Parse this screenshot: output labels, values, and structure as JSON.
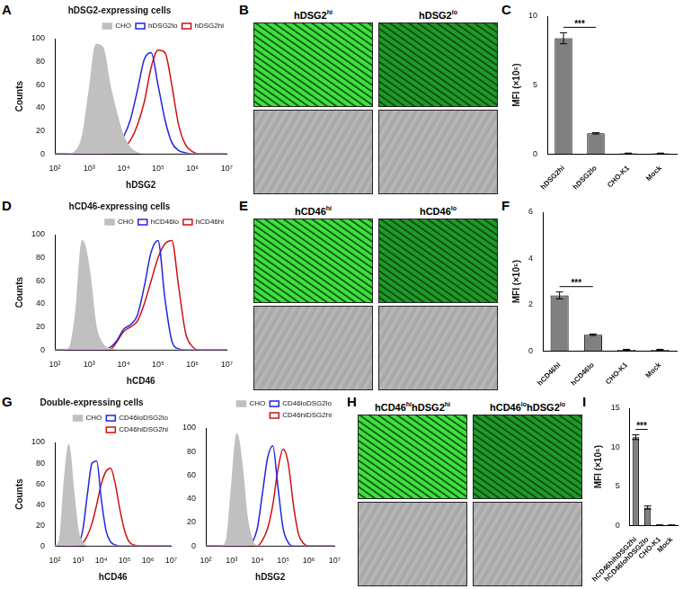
{
  "chart_data": [
    {
      "type": "line",
      "title": "hDSG2-expressing cells",
      "xlabel": "hDSG2",
      "ylabel": "Counts",
      "log": "x",
      "grid": false,
      "legend": "top-right",
      "x": [
        100,
        158,
        251,
        398,
        631,
        1000,
        1585,
        2512,
        3981,
        6310,
        10000,
        15849,
        25119,
        39811,
        63096,
        100000,
        158489,
        251189,
        398107,
        630957,
        1000000,
        1584893,
        2511886,
        3981072,
        6309573,
        10000000
      ],
      "series": [
        {
          "name": "CHO",
          "color": "#c0c0c0",
          "values": [
            0,
            0,
            0,
            2,
            15,
            55,
            95,
            92,
            60,
            35,
            15,
            5,
            1,
            0,
            0,
            0,
            0,
            0,
            0,
            0,
            0,
            0,
            0,
            0,
            0,
            0
          ]
        },
        {
          "name": "hDSG2lo",
          "color": "#2323e0",
          "values": [
            0,
            0,
            0,
            0,
            0,
            0,
            0,
            0,
            2,
            6,
            15,
            30,
            55,
            82,
            88,
            60,
            30,
            10,
            3,
            1,
            0,
            0,
            0,
            0,
            0,
            0
          ]
        },
        {
          "name": "hDSG2hi",
          "color": "#d01010",
          "values": [
            0,
            0,
            0,
            0,
            0,
            0,
            0,
            0,
            0,
            2,
            5,
            12,
            25,
            45,
            75,
            90,
            88,
            60,
            25,
            8,
            2,
            0,
            0,
            0,
            0,
            0
          ]
        }
      ],
      "xlim": [
        100,
        10000000
      ],
      "xticks": [
        {
          "value": 100,
          "label": "10²"
        },
        {
          "value": 1000,
          "label": "10³"
        },
        {
          "value": 10000,
          "label": "10⁴"
        },
        {
          "value": 100000,
          "label": "10⁵"
        },
        {
          "value": 1000000,
          "label": "10⁶"
        },
        {
          "value": 10000000,
          "label": "10⁷"
        }
      ],
      "ylim": [
        0,
        100
      ],
      "yticks": [
        0,
        20,
        40,
        60,
        80,
        100
      ]
    },
    {
      "type": "bar",
      "ylabel": "MFI (×10⁵)",
      "grid": false,
      "categories": [
        "hDSG2hi",
        "hDSG2lo",
        "CHO-K1",
        "Mock"
      ],
      "values": [
        8.4,
        1.5,
        0.05,
        0.05
      ],
      "errors": [
        0.4,
        0.05,
        0.02,
        0.02
      ],
      "color": "#808080",
      "ylim": [
        0,
        10
      ],
      "yticks": [
        0,
        5,
        10
      ],
      "annotations": [
        {
          "text": "***",
          "between": [
            "hDSG2hi",
            "hDSG2lo"
          ]
        }
      ]
    },
    {
      "type": "line",
      "title": "hCD46-expressing cells",
      "xlabel": "hCD46",
      "ylabel": "Counts",
      "log": "x",
      "grid": false,
      "legend": "top-right",
      "x": [
        100,
        158,
        251,
        398,
        631,
        1000,
        1585,
        2512,
        3981,
        6310,
        10000,
        15849,
        25119,
        39811,
        63096,
        100000,
        158489,
        251189,
        398107,
        630957,
        1000000,
        1584893,
        2511886,
        3981072,
        6309573,
        10000000
      ],
      "series": [
        {
          "name": "CHO",
          "color": "#c0c0c0",
          "values": [
            0,
            0,
            1,
            30,
            95,
            70,
            20,
            5,
            1,
            0,
            0,
            0,
            0,
            0,
            0,
            0,
            0,
            0,
            0,
            0,
            0,
            0,
            0,
            0,
            0,
            0
          ]
        },
        {
          "name": "hCD46lo",
          "color": "#2323e0",
          "values": [
            0,
            0,
            0,
            0,
            0,
            0,
            0,
            0,
            2,
            8,
            18,
            22,
            30,
            55,
            85,
            95,
            45,
            8,
            1,
            0,
            0,
            0,
            0,
            0,
            0,
            0
          ]
        },
        {
          "name": "hCD46hi",
          "color": "#d01010",
          "values": [
            0,
            0,
            0,
            0,
            0,
            0,
            0,
            0,
            0,
            7,
            16,
            20,
            25,
            40,
            60,
            80,
            92,
            95,
            55,
            15,
            3,
            0,
            0,
            0,
            0,
            0
          ]
        }
      ],
      "xlim": [
        100,
        10000000
      ],
      "xticks": [
        {
          "value": 100,
          "label": "10²"
        },
        {
          "value": 1000,
          "label": "10³"
        },
        {
          "value": 10000,
          "label": "10⁴"
        },
        {
          "value": 100000,
          "label": "10⁵"
        },
        {
          "value": 1000000,
          "label": "10⁶"
        },
        {
          "value": 10000000,
          "label": "10⁷"
        }
      ],
      "ylim": [
        0,
        100
      ],
      "yticks": [
        0,
        20,
        40,
        60,
        80,
        100
      ]
    },
    {
      "type": "bar",
      "ylabel": "MFI (×10⁵)",
      "grid": false,
      "categories": [
        "hCD46hi",
        "hCD46lo",
        "CHO-K1",
        "Mock"
      ],
      "values": [
        2.4,
        0.7,
        0.05,
        0.05
      ],
      "errors": [
        0.15,
        0.03,
        0.02,
        0.02
      ],
      "color": "#808080",
      "ylim": [
        0,
        6
      ],
      "yticks": [
        0,
        2,
        4,
        6
      ],
      "annotations": [
        {
          "text": "***",
          "between": [
            "hCD46hi",
            "hCD46lo"
          ]
        }
      ]
    },
    {
      "type": "line",
      "title": "Double-expressing cells",
      "xlabel": "hCD46",
      "ylabel": "Counts",
      "log": "x",
      "grid": false,
      "legend": "top-right",
      "x": [
        100,
        158,
        251,
        398,
        631,
        1000,
        1585,
        2512,
        3981,
        6310,
        10000,
        15849,
        25119,
        39811,
        63096,
        100000,
        158489,
        251189,
        398107,
        630957,
        1000000,
        1584893,
        2511886,
        3981072,
        6309573,
        10000000
      ],
      "series": [
        {
          "name": "CHO",
          "color": "#c0c0c0",
          "values": [
            0,
            5,
            60,
            98,
            55,
            15,
            3,
            0,
            0,
            0,
            0,
            0,
            0,
            0,
            0,
            0,
            0,
            0,
            0,
            0,
            0,
            0,
            0,
            0,
            0,
            0
          ]
        },
        {
          "name": "CD46loDSG2lo",
          "color": "#2323e0",
          "values": [
            0,
            0,
            0,
            0,
            0,
            2,
            15,
            50,
            80,
            82,
            45,
            15,
            4,
            1,
            0,
            0,
            0,
            0,
            0,
            0,
            0,
            0,
            0,
            0,
            0,
            0
          ]
        },
        {
          "name": "CD46hiDSG2hi",
          "color": "#d01010",
          "values": [
            0,
            0,
            0,
            0,
            0,
            0,
            3,
            10,
            22,
            40,
            60,
            72,
            75,
            60,
            35,
            15,
            4,
            1,
            0,
            0,
            0,
            0,
            0,
            0,
            0,
            0
          ]
        }
      ],
      "xlim": [
        100,
        10000000
      ],
      "xticks": [
        {
          "value": 100,
          "label": "10²"
        },
        {
          "value": 1000,
          "label": "10³"
        },
        {
          "value": 10000,
          "label": "10⁴"
        },
        {
          "value": 100000,
          "label": "10⁵"
        },
        {
          "value": 1000000,
          "label": "10⁶"
        },
        {
          "value": 10000000,
          "label": "10⁷"
        }
      ],
      "ylim": [
        0,
        100
      ],
      "yticks": [
        0,
        20,
        40,
        60,
        80,
        100
      ]
    },
    {
      "type": "line",
      "xlabel": "hDSG2",
      "log": "x",
      "grid": false,
      "legend": "top-right",
      "x": [
        100,
        158,
        251,
        398,
        631,
        1000,
        1585,
        2512,
        3981,
        6310,
        10000,
        15849,
        25119,
        39811,
        63096,
        100000,
        158489,
        251189,
        398107,
        630957,
        1000000,
        1584893,
        2511886,
        3981072,
        6309573,
        10000000
      ],
      "series": [
        {
          "name": "CHO",
          "color": "#c0c0c0",
          "values": [
            0,
            0,
            0,
            0,
            5,
            50,
            95,
            70,
            25,
            5,
            0,
            0,
            0,
            0,
            0,
            0,
            0,
            0,
            0,
            0,
            0,
            0,
            0,
            0,
            0,
            0
          ]
        },
        {
          "name": "CD46loDSG2lo",
          "color": "#2323e0",
          "values": [
            0,
            0,
            0,
            0,
            0,
            0,
            0,
            0,
            0,
            3,
            15,
            45,
            75,
            85,
            50,
            15,
            3,
            0,
            0,
            0,
            0,
            0,
            0,
            0,
            0,
            0
          ]
        },
        {
          "name": "CD46hiDSG2hi",
          "color": "#d01010",
          "values": [
            0,
            0,
            0,
            0,
            0,
            0,
            0,
            0,
            0,
            0,
            0,
            5,
            15,
            35,
            65,
            82,
            70,
            35,
            10,
            2,
            0,
            0,
            0,
            0,
            0,
            0
          ]
        }
      ],
      "xlim": [
        100,
        10000000
      ],
      "xticks": [
        {
          "value": 100,
          "label": "10²"
        },
        {
          "value": 1000,
          "label": "10³"
        },
        {
          "value": 10000,
          "label": "10⁴"
        },
        {
          "value": 100000,
          "label": "10⁵"
        },
        {
          "value": 1000000,
          "label": "10⁶"
        },
        {
          "value": 10000000,
          "label": "10⁷"
        }
      ],
      "ylim": [
        0,
        100
      ],
      "yticks": [
        0,
        20,
        40,
        60,
        80,
        100
      ]
    },
    {
      "type": "bar",
      "ylabel": "MFI (×10⁵)",
      "grid": false,
      "categories": [
        "hCD46hihDSG2hi",
        "hCD46lohDSG2lo",
        "CHO-K1",
        "Mock"
      ],
      "values": [
        11.3,
        2.3,
        0.05,
        0.05
      ],
      "errors": [
        0.3,
        0.2,
        0.02,
        0.02
      ],
      "color": "#808080",
      "ylim": [
        0,
        15
      ],
      "yticks": [
        0,
        5,
        10,
        15
      ],
      "annotations": [
        {
          "text": "***",
          "between": [
            "hCD46hihDSG2hi",
            "hCD46lohDSG2lo"
          ]
        }
      ]
    }
  ],
  "image_panels": [
    {
      "labels": [
        "hDSG2hi",
        "hDSG2lo"
      ]
    },
    {
      "labels": [
        "hCD46hi",
        "hCD46lo"
      ]
    },
    {
      "labels": [
        "hCD46hihDSG2hi",
        "hCD46lohDSG2lo"
      ]
    }
  ],
  "panel_labels": [
    "A",
    "B",
    "C",
    "D",
    "E",
    "F",
    "G",
    "H",
    "I"
  ]
}
